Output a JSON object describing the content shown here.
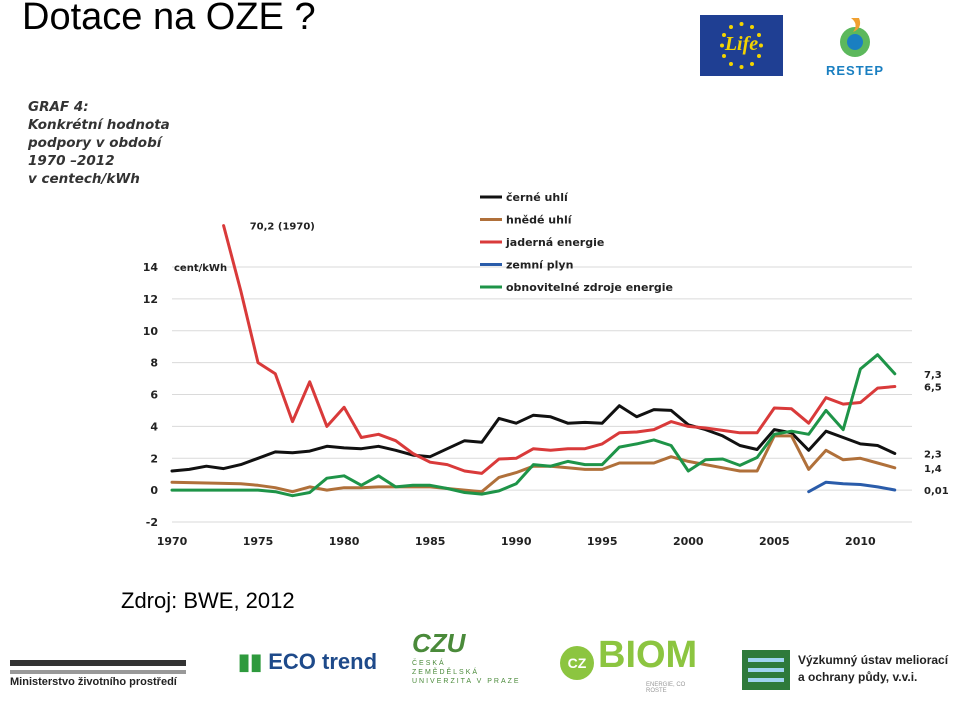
{
  "slide": {
    "title": "Dotace na OZE ?",
    "source": "Zdroj: BWE, 2012"
  },
  "logos": {
    "eu_life": "Life",
    "restep": "RESTEP",
    "mzp": "Ministerstvo životního prostředí",
    "eco_trend": "ECO trend",
    "czu_mark": "CZU",
    "czu_lines": [
      "ČESKÁ",
      "ZEMĚDĚLSKÁ",
      "UNIVERZITA V PRAZE"
    ],
    "cz_biom_cz": "CZ",
    "cz_biom": "BIOM",
    "cz_biom_tagline": "ENERGIE, CO ROSTE",
    "vumop_line1": "Výzkumný ústav meliorací",
    "vumop_line2": "a ochrany půdy, v.v.i."
  },
  "chart_data": {
    "type": "line",
    "title_lines": [
      "GRAF 4:",
      "Konkrétní hodnota",
      "podpory v období",
      "1970 –2012",
      "v centech/kWh"
    ],
    "unit_label": "cent/kWh",
    "ylim": [
      -2,
      14
    ],
    "yticks": [
      -2,
      0,
      2,
      4,
      6,
      8,
      10,
      12,
      14
    ],
    "xlim": [
      1970,
      2013
    ],
    "xticks": [
      1970,
      1975,
      1980,
      1985,
      1990,
      1995,
      2000,
      2005,
      2010
    ],
    "grid": true,
    "legend_position": "top-center",
    "annotations": [
      {
        "text": "70,2 (1970)",
        "x": 1974.4,
        "y": 16.6
      }
    ],
    "series": [
      {
        "name": "černé uhlí",
        "color": "#111111",
        "end_label": "2,3",
        "points": [
          [
            1970,
            1.2
          ],
          [
            1971,
            1.3
          ],
          [
            1972,
            1.5
          ],
          [
            1973,
            1.35
          ],
          [
            1974,
            1.6
          ],
          [
            1975,
            2.0
          ],
          [
            1976,
            2.4
          ],
          [
            1977,
            2.35
          ],
          [
            1978,
            2.45
          ],
          [
            1979,
            2.75
          ],
          [
            1980,
            2.65
          ],
          [
            1981,
            2.6
          ],
          [
            1982,
            2.75
          ],
          [
            1983,
            2.5
          ],
          [
            1984,
            2.2
          ],
          [
            1985,
            2.1
          ],
          [
            1986,
            2.6
          ],
          [
            1987,
            3.1
          ],
          [
            1988,
            3.0
          ],
          [
            1989,
            4.5
          ],
          [
            1990,
            4.2
          ],
          [
            1991,
            4.7
          ],
          [
            1992,
            4.6
          ],
          [
            1993,
            4.2
          ],
          [
            1994,
            4.25
          ],
          [
            1995,
            4.2
          ],
          [
            1996,
            5.3
          ],
          [
            1997,
            4.6
          ],
          [
            1998,
            5.05
          ],
          [
            1999,
            5.0
          ],
          [
            2000,
            4.1
          ],
          [
            2001,
            3.8
          ],
          [
            2002,
            3.4
          ],
          [
            2003,
            2.8
          ],
          [
            2004,
            2.55
          ],
          [
            2005,
            3.8
          ],
          [
            2006,
            3.6
          ],
          [
            2007,
            2.5
          ],
          [
            2008,
            3.7
          ],
          [
            2009,
            3.3
          ],
          [
            2010,
            2.9
          ],
          [
            2011,
            2.8
          ],
          [
            2012,
            2.3
          ]
        ]
      },
      {
        "name": "hnědé uhlí",
        "color": "#b0703a",
        "end_label": "1,4",
        "points": [
          [
            1970,
            0.5
          ],
          [
            1972,
            0.45
          ],
          [
            1974,
            0.4
          ],
          [
            1975,
            0.3
          ],
          [
            1976,
            0.15
          ],
          [
            1977,
            -0.1
          ],
          [
            1978,
            0.2
          ],
          [
            1979,
            0.0
          ],
          [
            1980,
            0.15
          ],
          [
            1981,
            0.15
          ],
          [
            1982,
            0.2
          ],
          [
            1983,
            0.2
          ],
          [
            1984,
            0.2
          ],
          [
            1985,
            0.2
          ],
          [
            1986,
            0.1
          ],
          [
            1987,
            0.0
          ],
          [
            1988,
            -0.1
          ],
          [
            1989,
            0.8
          ],
          [
            1990,
            1.1
          ],
          [
            1991,
            1.5
          ],
          [
            1992,
            1.5
          ],
          [
            1993,
            1.4
          ],
          [
            1994,
            1.3
          ],
          [
            1995,
            1.3
          ],
          [
            1996,
            1.7
          ],
          [
            1997,
            1.7
          ],
          [
            1998,
            1.7
          ],
          [
            1999,
            2.1
          ],
          [
            2000,
            1.8
          ],
          [
            2001,
            1.6
          ],
          [
            2002,
            1.4
          ],
          [
            2003,
            1.2
          ],
          [
            2004,
            1.2
          ],
          [
            2005,
            3.4
          ],
          [
            2006,
            3.4
          ],
          [
            2007,
            1.3
          ],
          [
            2008,
            2.5
          ],
          [
            2009,
            1.9
          ],
          [
            2010,
            2.0
          ],
          [
            2011,
            1.7
          ],
          [
            2012,
            1.4
          ]
        ]
      },
      {
        "name": "jaderná energie",
        "color": "#d93a3a",
        "end_label": "6,5",
        "points": [
          [
            1973,
            16.6
          ],
          [
            1974,
            12.5
          ],
          [
            1975,
            8.0
          ],
          [
            1976,
            7.3
          ],
          [
            1977,
            4.3
          ],
          [
            1978,
            6.8
          ],
          [
            1979,
            4.0
          ],
          [
            1980,
            5.2
          ],
          [
            1981,
            3.3
          ],
          [
            1982,
            3.5
          ],
          [
            1983,
            3.1
          ],
          [
            1984,
            2.3
          ],
          [
            1985,
            1.75
          ],
          [
            1986,
            1.6
          ],
          [
            1987,
            1.2
          ],
          [
            1988,
            1.05
          ],
          [
            1989,
            1.95
          ],
          [
            1990,
            2.0
          ],
          [
            1991,
            2.6
          ],
          [
            1992,
            2.5
          ],
          [
            1993,
            2.6
          ],
          [
            1994,
            2.6
          ],
          [
            1995,
            2.9
          ],
          [
            1996,
            3.6
          ],
          [
            1997,
            3.65
          ],
          [
            1998,
            3.8
          ],
          [
            1999,
            4.3
          ],
          [
            2000,
            4.0
          ],
          [
            2001,
            3.9
          ],
          [
            2002,
            3.75
          ],
          [
            2003,
            3.6
          ],
          [
            2004,
            3.6
          ],
          [
            2005,
            5.15
          ],
          [
            2006,
            5.1
          ],
          [
            2007,
            4.2
          ],
          [
            2008,
            5.8
          ],
          [
            2009,
            5.4
          ],
          [
            2010,
            5.5
          ],
          [
            2011,
            6.4
          ],
          [
            2012,
            6.5
          ]
        ]
      },
      {
        "name": "zemní plyn",
        "color": "#2a5caa",
        "end_label": "0,01",
        "points": [
          [
            2007,
            -0.1
          ],
          [
            2008,
            0.5
          ],
          [
            2009,
            0.4
          ],
          [
            2010,
            0.35
          ],
          [
            2011,
            0.2
          ],
          [
            2012,
            0.01
          ]
        ]
      },
      {
        "name": "obnovitelné zdroje energie",
        "color": "#1e9448",
        "end_label": "7,3",
        "points": [
          [
            1970,
            0.0
          ],
          [
            1972,
            0.0
          ],
          [
            1974,
            0.0
          ],
          [
            1975,
            0.0
          ],
          [
            1976,
            -0.1
          ],
          [
            1977,
            -0.35
          ],
          [
            1978,
            -0.15
          ],
          [
            1979,
            0.75
          ],
          [
            1980,
            0.9
          ],
          [
            1981,
            0.3
          ],
          [
            1982,
            0.9
          ],
          [
            1983,
            0.2
          ],
          [
            1984,
            0.3
          ],
          [
            1985,
            0.3
          ],
          [
            1986,
            0.1
          ],
          [
            1987,
            -0.15
          ],
          [
            1988,
            -0.25
          ],
          [
            1989,
            -0.05
          ],
          [
            1990,
            0.4
          ],
          [
            1991,
            1.6
          ],
          [
            1992,
            1.5
          ],
          [
            1993,
            1.8
          ],
          [
            1994,
            1.6
          ],
          [
            1995,
            1.6
          ],
          [
            1996,
            2.7
          ],
          [
            1997,
            2.9
          ],
          [
            1998,
            3.15
          ],
          [
            1999,
            2.8
          ],
          [
            2000,
            1.2
          ],
          [
            2001,
            1.9
          ],
          [
            2002,
            1.95
          ],
          [
            2003,
            1.55
          ],
          [
            2004,
            2.05
          ],
          [
            2005,
            3.5
          ],
          [
            2006,
            3.7
          ],
          [
            2007,
            3.5
          ],
          [
            2008,
            5.0
          ],
          [
            2009,
            3.8
          ],
          [
            2010,
            7.6
          ],
          [
            2011,
            8.5
          ],
          [
            2012,
            7.3
          ]
        ]
      }
    ]
  }
}
